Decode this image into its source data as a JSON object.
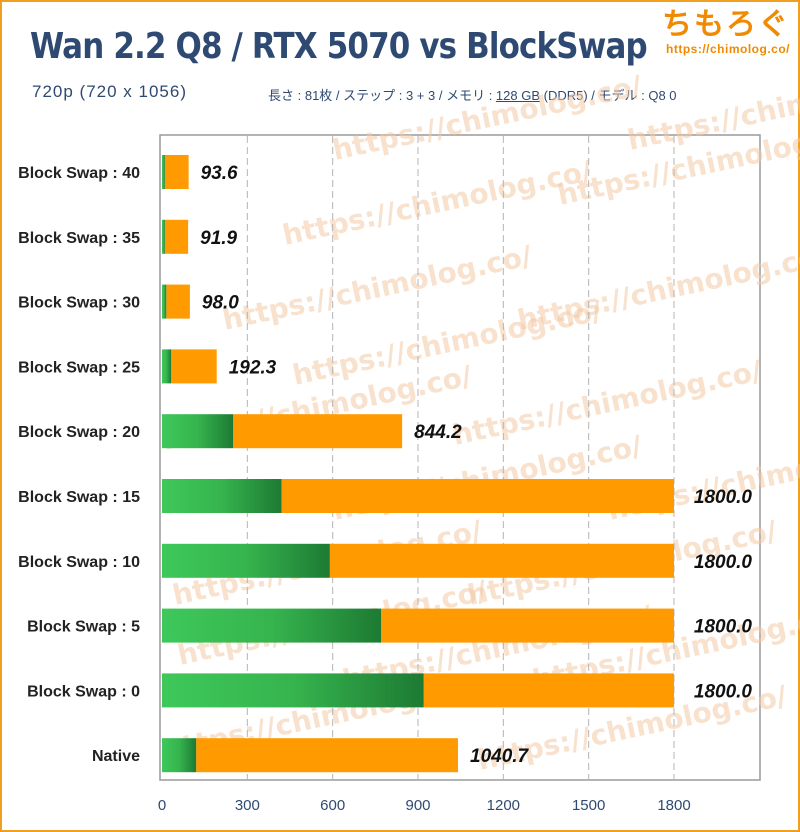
{
  "header": {
    "title": "Wan 2.2 Q8 / RTX 5070 vs BlockSwap",
    "subtitle": "720p (720 x 1056)",
    "meta_pre": "長さ : 81枚 / ステップ : 3 + 3 / メモリ : ",
    "meta_mem": "128 GB",
    "meta_post": " (DDR5) / モデル : Q8 0"
  },
  "brand": {
    "name": "ちもろぐ",
    "url": "https://chimolog.co/"
  },
  "watermark": "https://chimolog.co/",
  "chart_data": {
    "type": "bar",
    "orientation": "horizontal",
    "stacked": true,
    "categories": [
      "Block Swap : 40",
      "Block Swap : 35",
      "Block Swap : 30",
      "Block Swap : 25",
      "Block Swap : 20",
      "Block Swap : 15",
      "Block Swap : 10",
      "Block Swap : 5",
      "Block Swap : 0",
      "Native"
    ],
    "series": [
      {
        "values": [
          10,
          10,
          15,
          32,
          250,
          420,
          590,
          770,
          920,
          120
        ],
        "color": "#2e9e48"
      },
      {
        "values": [
          83.6,
          81.9,
          83.0,
          160.3,
          594.2,
          1380.0,
          1210.0,
          1030.0,
          880.0,
          920.7
        ],
        "color": "#ff9a00"
      }
    ],
    "totals": [
      "93.6",
      "91.9",
      "98.0",
      "192.3",
      "844.2",
      "1800.0",
      "1800.0",
      "1800.0",
      "1800.0",
      "1040.7"
    ],
    "xlim": [
      0,
      1800
    ],
    "xticks": [
      0,
      300,
      600,
      900,
      1200,
      1500,
      1800
    ],
    "grid": true,
    "title": "Wan 2.2 Q8 / RTX 5070 vs BlockSwap"
  }
}
